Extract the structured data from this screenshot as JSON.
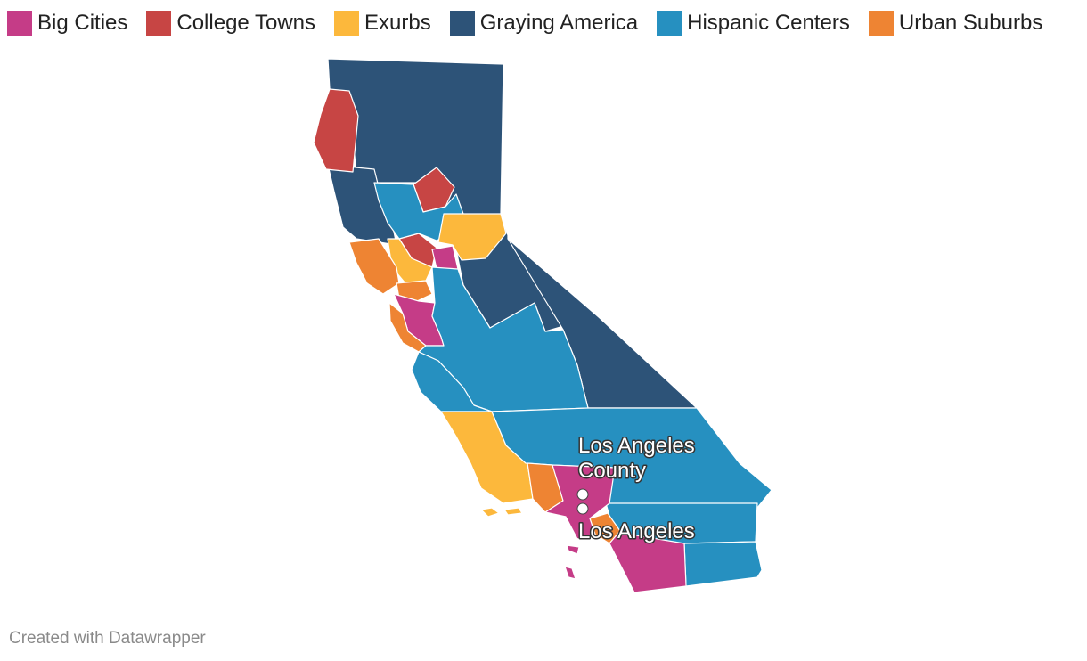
{
  "legend": {
    "items": [
      {
        "label": "Big Cities",
        "color": "#c53c87"
      },
      {
        "label": "College Towns",
        "color": "#c74544"
      },
      {
        "label": "Exurbs",
        "color": "#fcb83c"
      },
      {
        "label": "Graying America",
        "color": "#2d5378"
      },
      {
        "label": "Hispanic Centers",
        "color": "#2690c0"
      },
      {
        "label": "Urban Suburbs",
        "color": "#ee8433"
      }
    ]
  },
  "markers": [
    {
      "label_line1": "Los Angeles",
      "label_line2": "County"
    },
    {
      "label_line1": "Los Angeles"
    }
  ],
  "credit": "Created with Datawrapper"
}
